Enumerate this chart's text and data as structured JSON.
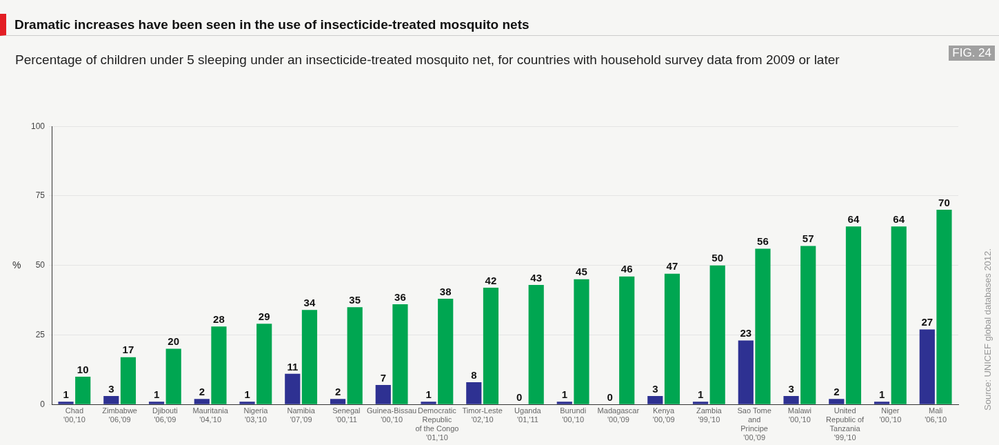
{
  "chart_data": {
    "type": "bar",
    "title": "Dramatic increases have been seen in the use of insecticide-treated mosquito nets",
    "subtitle": "Percentage of children under 5 sleeping under an insecticide-treated mosquito net, for countries with household survey data from 2009 or later",
    "ylabel": "%",
    "categories": [
      "Chad\n'00,'10",
      "Zimbabwe\n'06,'09",
      "Djibouti\n'06,'09",
      "Mauritania\n'04,'10",
      "Nigeria\n'03,'10",
      "Namibia\n'07,'09",
      "Senegal\n'00,'11",
      "Guinea-Bissau\n'00,'10",
      "Democratic\nRepublic\nof the Congo\n'01,'10",
      "Timor-Leste\n'02,'10",
      "Uganda\n'01,'11",
      "Burundi\n'00,'10",
      "Madagascar\n'00,'09",
      "Kenya\n'00,'09",
      "Zambia\n'99,'10",
      "Sao Tome\nand\nPrincipe\n'00,'09",
      "Malawi\n'00,'10",
      "United\nRepublic of\nTanzania\n'99,'10",
      "Niger\n'00,'10",
      "Mali\n'06,'10"
    ],
    "series": [
      {
        "color": "#2e3192",
        "values": [
          1,
          3,
          1,
          2,
          1,
          11,
          2,
          7,
          1,
          8,
          0,
          1,
          0,
          3,
          1,
          23,
          3,
          2,
          1,
          27
        ]
      },
      {
        "color": "#00a651",
        "values": [
          10,
          17,
          20,
          28,
          29,
          34,
          35,
          36,
          38,
          42,
          43,
          45,
          46,
          47,
          50,
          56,
          57,
          64,
          64,
          70
        ]
      }
    ],
    "ylim": [
      0,
      100
    ],
    "yticks": [
      0,
      25,
      50,
      75,
      100
    ],
    "grid": "y",
    "legend": false,
    "data_labels": true,
    "annotations": [
      "FIG. 24",
      "Source: UNICEF global databases 2012."
    ]
  }
}
